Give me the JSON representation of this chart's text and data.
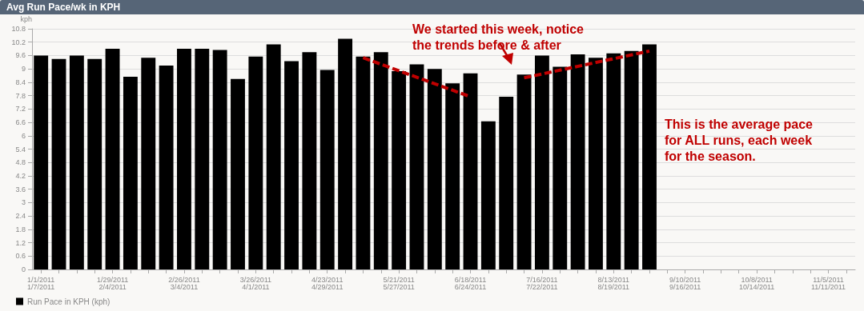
{
  "chart_data": {
    "type": "bar",
    "title": "Avg Run Pace/wk in KPH",
    "ylabel": "kph",
    "categories": [
      "1/1/2011\n1/7/2011",
      null,
      null,
      null,
      "1/29/2011\n2/4/2011",
      null,
      null,
      null,
      "2/26/2011\n3/4/2011",
      null,
      null,
      null,
      "3/26/2011\n4/1/2011",
      null,
      null,
      null,
      "4/23/2011\n4/29/2011",
      null,
      null,
      null,
      "5/21/2011\n5/27/2011",
      null,
      null,
      null,
      "6/18/2011\n6/24/2011",
      null,
      null,
      null,
      "7/16/2011\n7/22/2011",
      null,
      null,
      null,
      "8/13/2011\n8/19/2011",
      null,
      null,
      null,
      "9/10/2011\n9/16/2011",
      null,
      null,
      null,
      "10/8/2011\n10/14/2011",
      null,
      null,
      null,
      "11/5/2011\n11/11/2011",
      null
    ],
    "series": [
      {
        "name": "Run Pace in KPH (kph)",
        "color": "#000000",
        "values": [
          9.6,
          9.45,
          9.6,
          9.45,
          9.9,
          8.65,
          9.5,
          9.15,
          9.9,
          9.9,
          9.85,
          8.55,
          9.55,
          10.1,
          9.35,
          9.75,
          8.95,
          10.35,
          9.55,
          9.75,
          8.9,
          9.2,
          9.0,
          8.35,
          8.8,
          6.65,
          7.75,
          8.75,
          9.6,
          9.1,
          9.65,
          9.5,
          9.7,
          9.8,
          10.1,
          null,
          null,
          null,
          null,
          null,
          null,
          null,
          null,
          null,
          null,
          null
        ]
      },
      {
        "type": "line",
        "color": "#c00000",
        "line_style": "dashed",
        "values": [
          null,
          null,
          null,
          null,
          null,
          null,
          null,
          null,
          null,
          null,
          null,
          null,
          null,
          null,
          null,
          null,
          null,
          null,
          9.5,
          null,
          null,
          null,
          null,
          null,
          7.75,
          null,
          null,
          null,
          null,
          null,
          null,
          null,
          null,
          null,
          null,
          null,
          null,
          null,
          null,
          null,
          null,
          null,
          null,
          null,
          null,
          null
        ]
      },
      {
        "type": "line",
        "color": "#c00000",
        "line_style": "dashed",
        "values": [
          null,
          null,
          null,
          null,
          null,
          null,
          null,
          null,
          null,
          null,
          null,
          null,
          null,
          null,
          null,
          null,
          null,
          null,
          null,
          null,
          null,
          null,
          null,
          null,
          null,
          null,
          null,
          8.6,
          null,
          null,
          null,
          null,
          null,
          null,
          9.8,
          null,
          null,
          null,
          null,
          null,
          null,
          null,
          null,
          null,
          null,
          null
        ]
      }
    ],
    "ylim": [
      0,
      10.8
    ],
    "yticks": [
      0,
      0.6,
      1.2,
      1.8,
      2.4,
      3,
      3.6,
      4.2,
      4.8,
      5.4,
      6,
      6.6,
      7.2,
      7.8,
      8.4,
      9,
      9.6,
      10.2,
      10.8
    ],
    "grid": "y",
    "legend": "bottom",
    "marker": "none",
    "annotations": [
      "We started this week, notice the trends before & after",
      "This is the average pace for ALL runs, each week for the season."
    ]
  }
}
